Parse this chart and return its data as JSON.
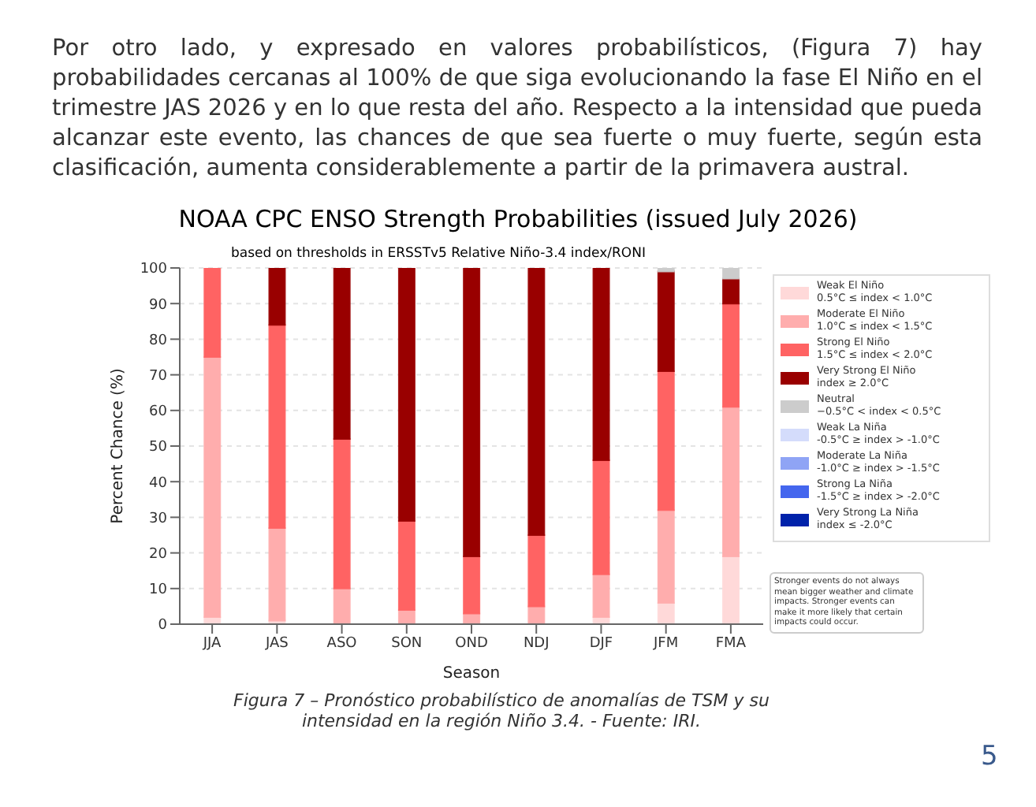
{
  "chart_data": {
    "type": "bar",
    "title": "NOAA CPC ENSO Strength Probabilities (issued July 2026)",
    "subtitle": "based on thresholds in ERSSTv5 Relative Niño-3.4 index/RONI",
    "xlabel": "Season",
    "ylabel": "Percent Chance (%)",
    "categories": [
      "JJA",
      "JAS",
      "ASO",
      "SON",
      "OND",
      "NDJ",
      "DJF",
      "JFM",
      "FMA"
    ],
    "stacked": true,
    "ylim": [
      0,
      100
    ],
    "yticks": [
      0,
      10,
      20,
      30,
      40,
      50,
      60,
      70,
      80,
      90,
      100
    ],
    "grid": "y",
    "legend": "right",
    "series": [
      {
        "name": "Weak El Niño\n0.5°C ≤ index < 1.0°C",
        "color": "#ffd9d9",
        "values": [
          2,
          1,
          0,
          0,
          0,
          0,
          2,
          6,
          19
        ]
      },
      {
        "name": "Moderate El Niño\n1.0°C ≤ index < 1.5°C",
        "color": "#ffadad",
        "values": [
          73,
          26,
          10,
          4,
          3,
          5,
          12,
          26,
          42
        ]
      },
      {
        "name": "Strong El Niño\n1.5°C ≤ index < 2.0°C",
        "color": "#ff6363",
        "values": [
          25,
          57,
          42,
          25,
          16,
          20,
          32,
          39,
          29
        ]
      },
      {
        "name": "Very Strong El Niño\nindex ≥ 2.0°C",
        "color": "#990000",
        "values": [
          0,
          16,
          48,
          71,
          81,
          75,
          54,
          28,
          7
        ]
      },
      {
        "name": "Neutral\n−0.5°C < index < 0.5°C",
        "color": "#cccccc",
        "values": [
          0,
          0,
          0,
          0,
          0,
          0,
          0,
          1,
          3
        ]
      },
      {
        "name": "Weak La Niña\n-0.5°C ≥ index > -1.0°C",
        "color": "#d4dcfb",
        "values": [
          0,
          0,
          0,
          0,
          0,
          0,
          0,
          0,
          0
        ]
      },
      {
        "name": "Moderate La Niña\n-1.0°C ≥ index > -1.5°C",
        "color": "#8fa4f5",
        "values": [
          0,
          0,
          0,
          0,
          0,
          0,
          0,
          0,
          0
        ]
      },
      {
        "name": "Strong La Niña\n-1.5°C ≥ index > -2.0°C",
        "color": "#4466ee",
        "values": [
          0,
          0,
          0,
          0,
          0,
          0,
          0,
          0,
          0
        ]
      },
      {
        "name": "Very Strong La Niña\nindex ≤ -2.0°C",
        "color": "#0022aa",
        "values": [
          0,
          0,
          0,
          0,
          0,
          0,
          0,
          0,
          0
        ]
      }
    ],
    "annotations": [
      "Por otro lado, y expresado en valores probabilísticos, (Figura 7) hay probabilidades cercanas al 100% de que siga evolucionando la fase El Niño en el trimestre JAS 2026 y en lo que resta del año. Respecto a la intensidad que pueda alcanzar este evento, las chances de que sea fuerte o muy fuerte, según esta clasificación, aumenta considerablemente a partir de la primavera austral.",
      "Stronger events do not always mean bigger weather and climate impacts. Stronger events can make it more likely that certain impacts could occur.",
      "Figura 7 – Pronóstico probabilístico de anomalías de TSM y su intensidad en la región Niño 3.4. - Fuente: IRI.",
      "5"
    ]
  }
}
